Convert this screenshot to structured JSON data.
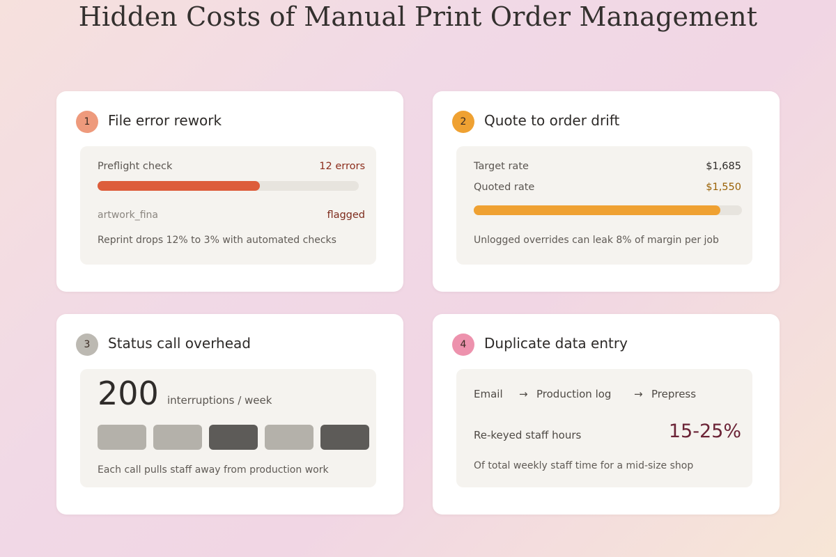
{
  "page_title": "Hidden Costs of Manual Print Order Management",
  "cards": [
    {
      "number": "1",
      "title": "File error rework",
      "badge_color": "#ee9a7c",
      "check_label": "Preflight check",
      "check_value": "12 errors",
      "progress": 0.62,
      "bar_color": "#dd5d3b",
      "file_name": "artwork_fina",
      "file_status": "flagged",
      "note": "Reprint drops 12% to 3% with automated checks"
    },
    {
      "number": "2",
      "title": "Quote to order drift",
      "badge_color": "#efa132",
      "target_label": "Target rate",
      "target_value": "$1,685",
      "quoted_label": "Quoted rate",
      "quoted_value": "$1,550",
      "progress": 0.92,
      "bar_color": "#efa132",
      "note": "Unlogged overrides can leak 8% of margin per job"
    },
    {
      "number": "3",
      "title": "Status call overhead",
      "badge_color": "#bcb9b2",
      "count": "200",
      "count_unit": "interruptions / week",
      "note": "Each call pulls staff away from production work"
    },
    {
      "number": "4",
      "title": "Duplicate data entry",
      "badge_color": "#ed92ad",
      "flow": [
        "Email",
        "Production log",
        "Prepress"
      ],
      "arrow": "→",
      "rekey_label": "Re-keyed staff hours",
      "rekey_value": "15-25%",
      "note": "Of total weekly staff time for a mid-size shop"
    }
  ]
}
